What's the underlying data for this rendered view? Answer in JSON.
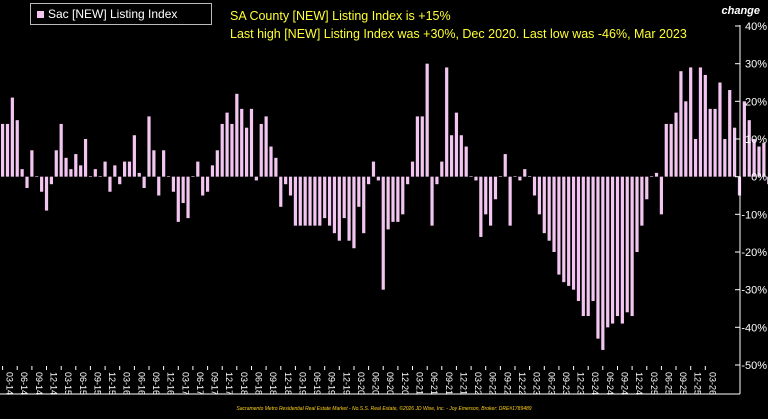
{
  "legend": {
    "label": "Sac [NEW] Listing Index"
  },
  "headline": {
    "line1": "SA County [NEW] Listing Index is +15%",
    "line2": "Last high [NEW] Listing Index was +30%, Dec 2020. Last low was -46%, Mar 2023"
  },
  "axis": {
    "change_label": "change"
  },
  "footer": {
    "credit": "Sacramento Metro Residential Real Estate Market - No.S.S. Real Estate, ©2026 JD Wise, Inc. - Joy Emerson, Broker: DRE#1789489"
  },
  "colors": {
    "background": "#000000",
    "bar": "#f3c6f1",
    "headline": "#ffff33",
    "axis_text": "#ffffff",
    "footer": "#ffd21a"
  },
  "chart_data": {
    "type": "bar",
    "series": [
      {
        "name": "Sac [NEW] Listing Index",
        "values": [
          14,
          14,
          21,
          15,
          2,
          -3,
          7,
          0,
          -4,
          -9,
          -2,
          7,
          14,
          5,
          2,
          6,
          3,
          10,
          0,
          2,
          0,
          4,
          -4,
          3,
          -2,
          4,
          4,
          11,
          1,
          -3,
          16,
          7,
          -5,
          7,
          0,
          -4,
          -12,
          -7,
          -11,
          0,
          4,
          -5,
          -4,
          3,
          7,
          14,
          17,
          14,
          22,
          18,
          13,
          18,
          -1,
          14,
          16,
          8,
          5,
          -8,
          -2,
          -5,
          -13,
          -13,
          -13,
          -13,
          -13,
          -13,
          -11,
          -13,
          -15,
          -17,
          -11,
          -17,
          -19,
          -8,
          -15,
          -2,
          4,
          -1,
          -30,
          -14,
          -12,
          -12,
          -10,
          -2,
          4,
          16,
          16,
          30,
          -13,
          -2,
          4,
          29,
          11,
          17,
          11,
          8,
          0,
          -1,
          -16,
          -10,
          -13,
          -6,
          0,
          6,
          -13,
          0,
          -1,
          2,
          0,
          -5,
          -10,
          -15,
          -17,
          -20,
          -26,
          -28,
          -29,
          -30,
          -33,
          -37,
          -37,
          -33,
          -43,
          -46,
          -40,
          -39,
          -37,
          -39,
          -36,
          -37,
          -20,
          -13,
          -6,
          0,
          1,
          -10,
          14,
          14,
          17,
          28,
          20,
          29,
          10,
          29,
          27,
          18,
          18,
          25,
          10,
          23,
          13,
          -5,
          20,
          15,
          10,
          8,
          9,
          -2,
          -9,
          -4,
          0,
          0,
          -12,
          7,
          -4,
          1,
          15
        ]
      }
    ],
    "x_tick_labels": [
      "03-14",
      "06-14",
      "09-14",
      "12-14",
      "03-15",
      "06-15",
      "09-15",
      "12-15",
      "03-16",
      "06-16",
      "09-16",
      "12-16",
      "03-17",
      "06-17",
      "09-17",
      "12-17",
      "03-18",
      "06-18",
      "09-18",
      "12-18",
      "03-19",
      "06-19",
      "09-19",
      "12-19",
      "03-20",
      "06-20",
      "09-20",
      "12-20",
      "03-21",
      "06-21",
      "09-21",
      "12-21",
      "03-22",
      "06-22",
      "09-22",
      "12-22",
      "03-23",
      "06-23",
      "09-23",
      "12-23",
      "03-24",
      "06-24",
      "09-24",
      "12-24",
      "03-25",
      "06-25",
      "09-25",
      "12-25",
      "03-26"
    ],
    "y_ticks": [
      "40%",
      "30%",
      "20%",
      "10%",
      "0%",
      "-10%",
      "-20%",
      "-30%",
      "-40%",
      "-50%"
    ],
    "ylim": [
      -50,
      40
    ],
    "grid": false,
    "legend_position": "top-left"
  }
}
